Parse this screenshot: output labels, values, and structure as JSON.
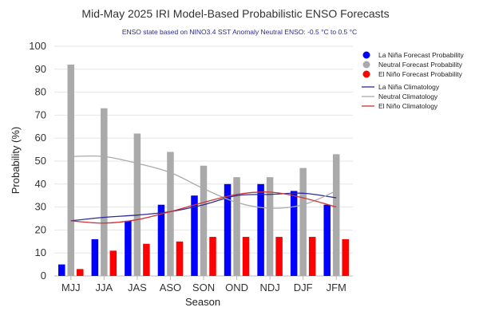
{
  "chart_data": {
    "type": "bar",
    "title": "Mid-May 2025 IRI Model-Based Probabilistic ENSO Forecasts",
    "subtitle": "ENSO state based on NINO3.4 SST Anomaly Neutral ENSO: -0.5 °C to 0.5 °C",
    "xlabel": "Season",
    "ylabel": "Probability (%)",
    "ylim": [
      0,
      100
    ],
    "yticks": [
      0,
      10,
      20,
      30,
      40,
      50,
      60,
      70,
      80,
      90,
      100
    ],
    "categories": [
      "MJJ",
      "JJA",
      "JAS",
      "ASO",
      "SON",
      "OND",
      "NDJ",
      "DJF",
      "JFM"
    ],
    "grid": true,
    "legend_position": "right",
    "series": [
      {
        "name": "La Niña Forecast Probability",
        "kind": "bar",
        "color": "#0000ff",
        "values": [
          5,
          16,
          24,
          31,
          35,
          40,
          40,
          37,
          31
        ]
      },
      {
        "name": "Neutral Forecast Probability",
        "kind": "bar",
        "color": "#aaaaaa",
        "values": [
          92,
          73,
          62,
          54,
          48,
          43,
          43,
          47,
          53
        ]
      },
      {
        "name": "El Niño Forecast Probability",
        "kind": "bar",
        "color": "#ff0000",
        "values": [
          3,
          11,
          14,
          15,
          17,
          17,
          17,
          17,
          16
        ]
      },
      {
        "name": "La Niña Climatology",
        "kind": "line",
        "color": "#2b2b9a",
        "values": [
          24,
          25.5,
          26.5,
          28,
          31,
          35,
          35.5,
          36,
          34
        ]
      },
      {
        "name": "Neutral Climatology",
        "kind": "line",
        "color": "#aaaaaa",
        "values": [
          52,
          52,
          49,
          45,
          38,
          32,
          29.5,
          31,
          37
        ]
      },
      {
        "name": "El Niño Climatology",
        "kind": "line",
        "color": "#cc3333",
        "values": [
          24,
          23,
          24.5,
          28,
          32,
          35.5,
          36.5,
          34,
          30
        ]
      }
    ]
  }
}
